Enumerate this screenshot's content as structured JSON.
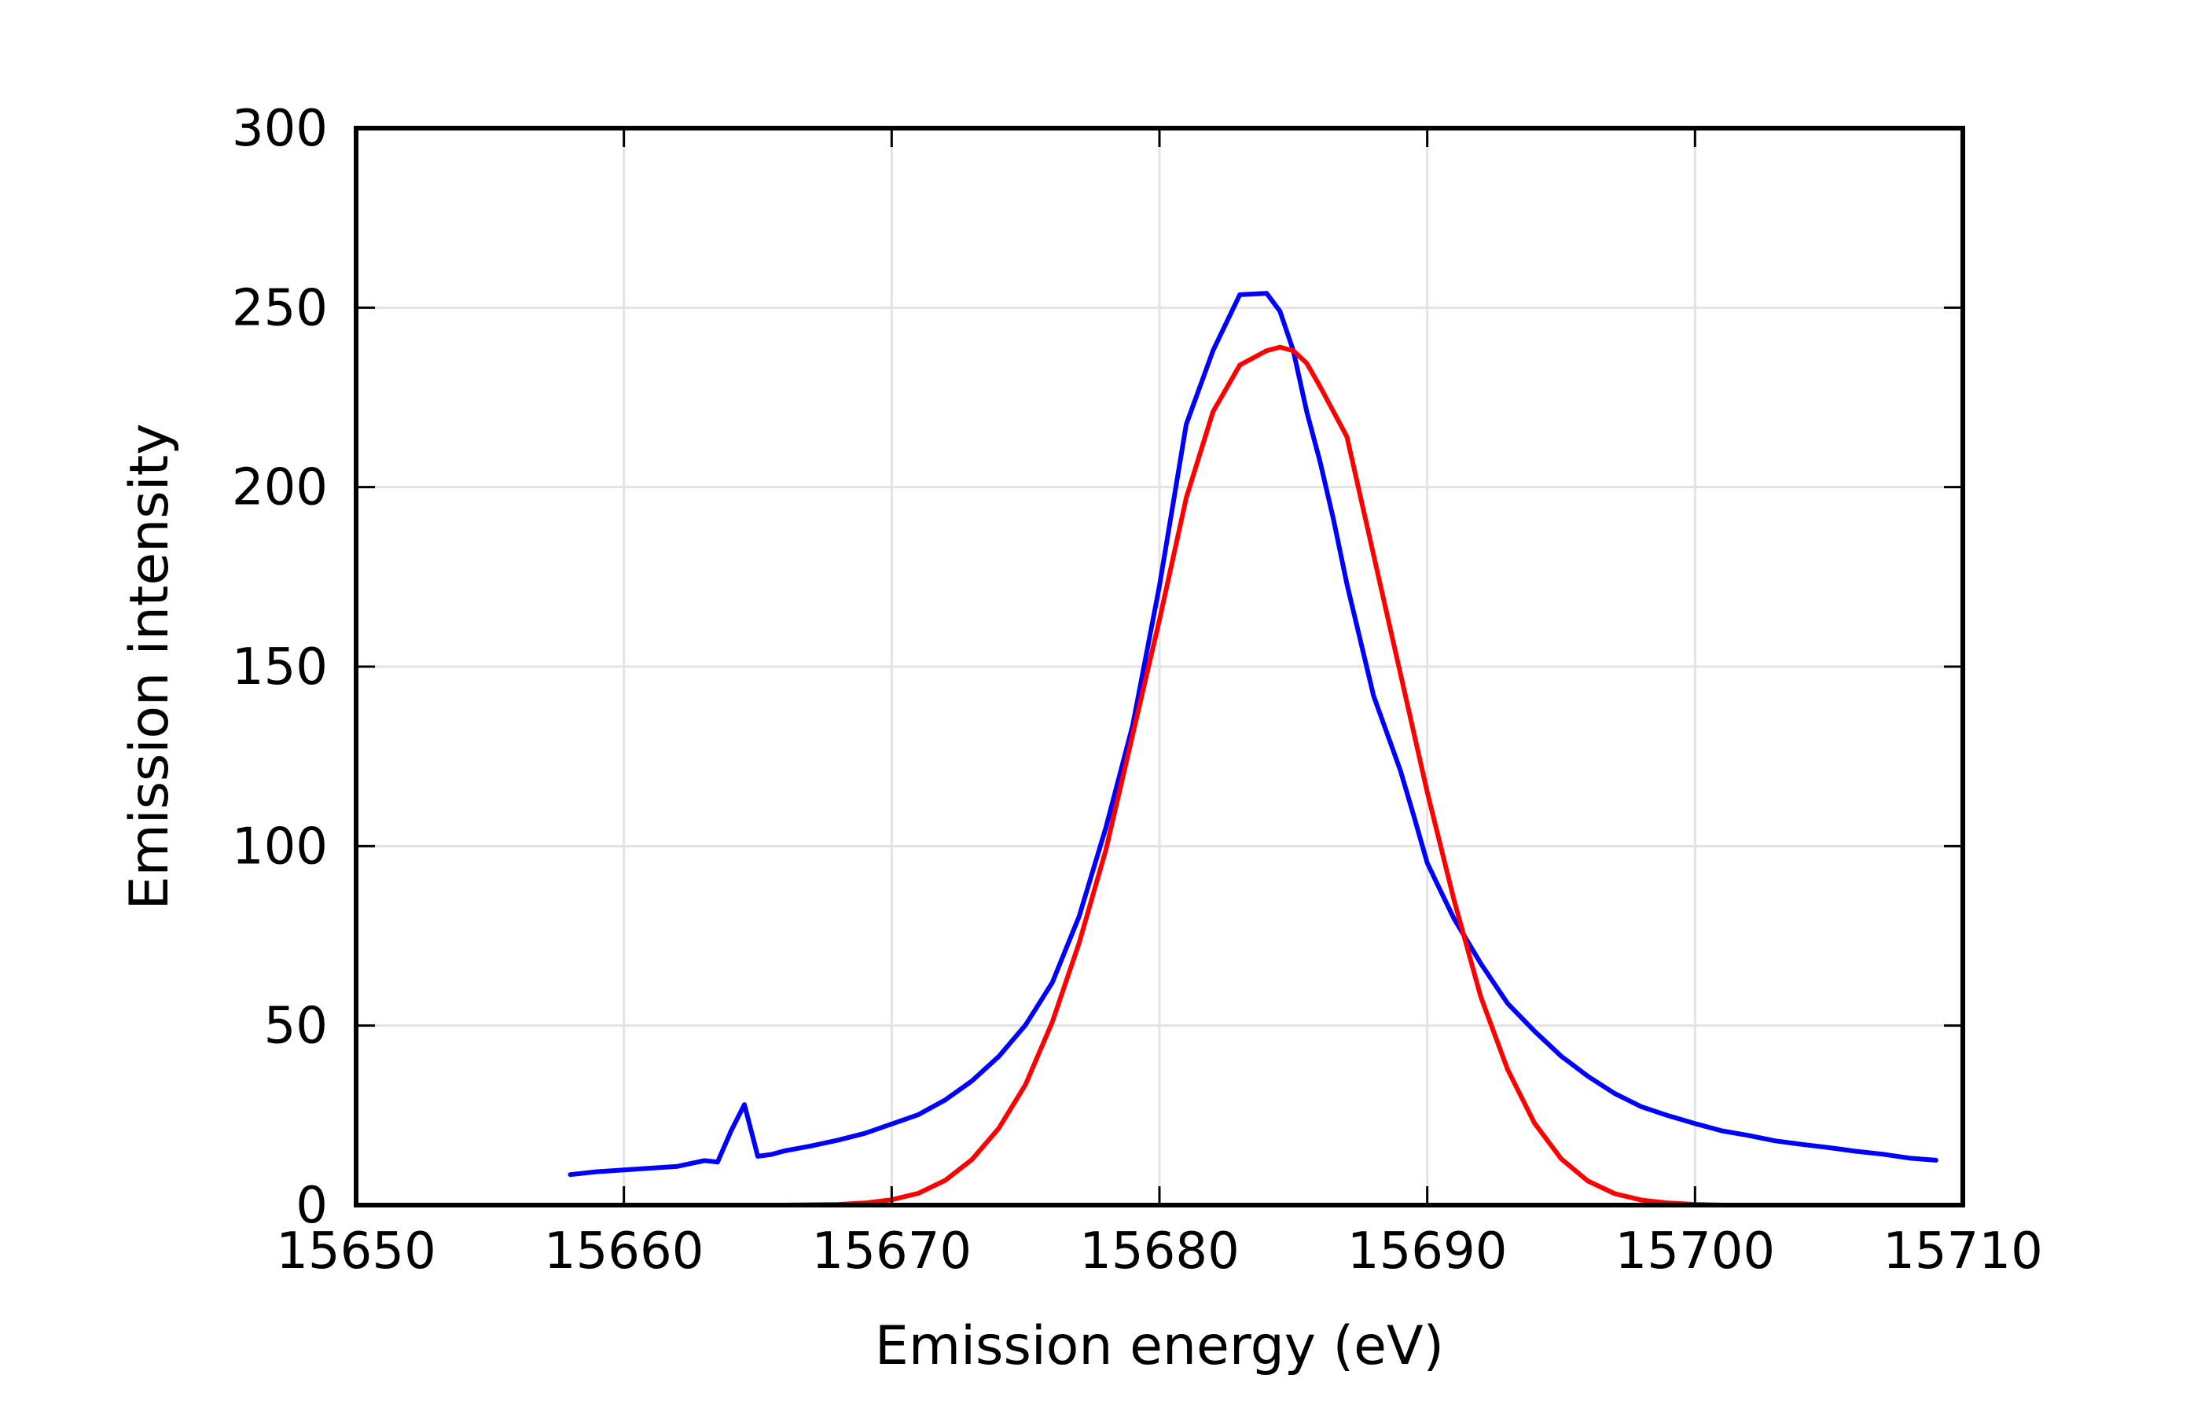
{
  "chart_data": {
    "type": "line",
    "title": "",
    "xlabel": "Emission energy (eV)",
    "ylabel": "Emission intensity",
    "xlim": [
      15650,
      15710
    ],
    "ylim": [
      0,
      300
    ],
    "xticks": [
      15650,
      15660,
      15670,
      15680,
      15690,
      15700,
      15710
    ],
    "yticks": [
      0,
      50,
      100,
      150,
      200,
      250,
      300
    ],
    "grid": true,
    "legend": "none",
    "series": [
      {
        "color": "#0000ff",
        "x": [
          15658,
          15659,
          15660,
          15661,
          15662,
          15663,
          15663.5,
          15664,
          15664.5,
          15665,
          15665.5,
          15666,
          15667,
          15668,
          15669,
          15670,
          15671,
          15672,
          15673,
          15674,
          15675,
          15676,
          15677,
          15678,
          15679,
          15680,
          15681,
          15682,
          15683,
          15684,
          15684.5,
          15685,
          15685.5,
          15686,
          15686.5,
          15687,
          15688,
          15689,
          15689.5,
          15690,
          15690.5,
          15691,
          15692,
          15693,
          15694,
          15695,
          15696,
          15697,
          15698,
          15699,
          15700,
          15701,
          15702,
          15703,
          15704,
          15705,
          15706,
          15707,
          15708,
          15709
        ],
        "y": [
          8.5,
          9.3,
          9.8,
          10.3,
          10.8,
          12.4,
          12,
          20.6,
          28,
          13.6,
          14.1,
          15.1,
          16.5,
          18.1,
          20.0,
          22.6,
          25.2,
          29.3,
          34.6,
          41.4,
          50.2,
          62.0,
          80.4,
          105.2,
          133.6,
          172.5,
          217.5,
          238.0,
          253.6,
          254.0,
          249.0,
          238.0,
          221.0,
          207.0,
          191.0,
          173.0,
          141.8,
          121.0,
          108.4,
          95.3,
          87.5,
          79.8,
          67.3,
          56.2,
          48.5,
          41.5,
          35.9,
          31.1,
          27.4,
          24.9,
          22.7,
          20.7,
          19.4,
          17.9,
          16.9,
          16.0,
          15.0,
          14.2,
          13.1,
          12.5
        ]
      },
      {
        "color": "#ff0000",
        "x": [
          15658,
          15660,
          15662,
          15664,
          15666,
          15668,
          15669,
          15670,
          15671,
          15672,
          15673,
          15674,
          15675,
          15676,
          15677,
          15678,
          15679,
          15680,
          15681,
          15682,
          15683,
          15684,
          15684.5,
          15685,
          15685.5,
          15686,
          15687,
          15688,
          15689,
          15690,
          15691,
          15692,
          15693,
          15694,
          15695,
          15696,
          15697,
          15698,
          15699,
          15700,
          15701,
          15702,
          15704,
          15706,
          15708,
          15710
        ],
        "y": [
          0,
          0,
          0,
          0,
          0,
          0.2,
          0.6,
          1.5,
          3.3,
          6.9,
          12.7,
          21.4,
          33.6,
          51.0,
          73.0,
          99.0,
          131.0,
          163.0,
          197.0,
          221.0,
          234.0,
          238.0,
          239.0,
          238.0,
          234.5,
          228.0,
          214.0,
          181.0,
          148.0,
          115.0,
          85.0,
          58.0,
          37.8,
          22.9,
          12.9,
          6.7,
          3.2,
          1.4,
          0.6,
          0.2,
          0,
          0,
          0,
          0,
          0,
          0
        ]
      }
    ]
  }
}
